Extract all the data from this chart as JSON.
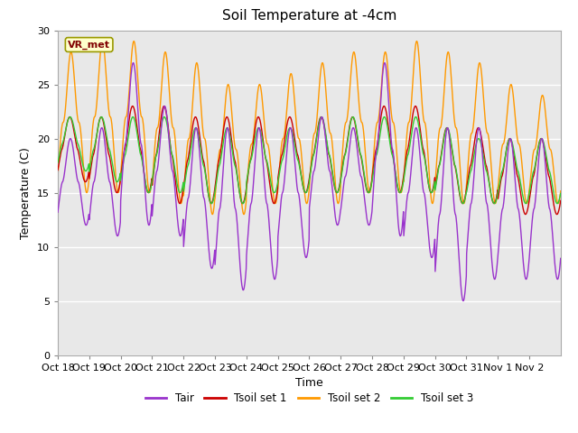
{
  "title": "Soil Temperature at -4cm",
  "xlabel": "Time",
  "ylabel": "Temperature (C)",
  "ylim": [
    0,
    30
  ],
  "yticks": [
    0,
    5,
    10,
    15,
    20,
    25,
    30
  ],
  "fig_bg_color": "#ffffff",
  "plot_bg_color": "#e8e8e8",
  "colors": {
    "Tair": "#9933cc",
    "Tsoil1": "#cc0000",
    "Tsoil2": "#ff9900",
    "Tsoil3": "#33cc33"
  },
  "legend_labels": [
    "Tair",
    "Tsoil set 1",
    "Tsoil set 2",
    "Tsoil set 3"
  ],
  "annotation": "VR_met",
  "days": [
    "Oct 18",
    "Oct 19",
    "Oct 20",
    "Oct 21",
    "Oct 22",
    "Oct 23",
    "Oct 24",
    "Oct 25",
    "Oct 26",
    "Oct 27",
    "Oct 28",
    "Oct 29",
    "Oct 30",
    "Oct 31",
    "Nov 1",
    "Nov 2"
  ]
}
